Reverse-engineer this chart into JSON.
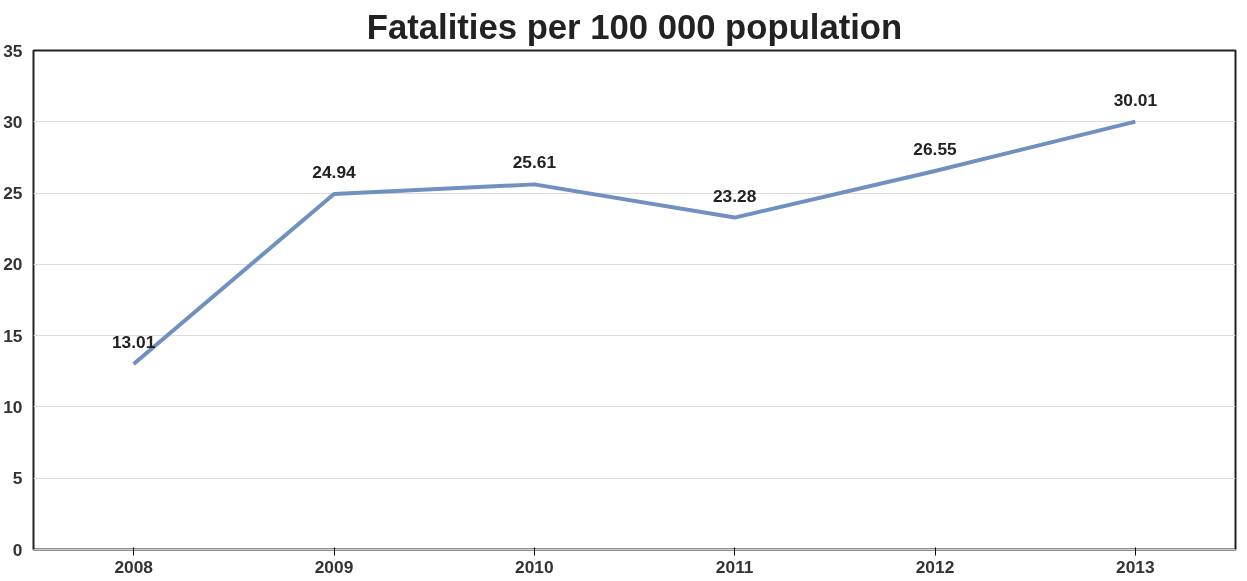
{
  "chart_data": {
    "type": "line",
    "title": "Fatalities per 100 000 population",
    "categories": [
      "2008",
      "2009",
      "2010",
      "2011",
      "2012",
      "2013"
    ],
    "series": [
      {
        "color": "#7090c0",
        "values": [
          13.01,
          24.94,
          25.61,
          23.28,
          26.55,
          30.01
        ]
      }
    ],
    "ylim": [
      0,
      35
    ],
    "yticks": [
      0,
      5,
      10,
      15,
      20,
      25,
      30,
      35
    ],
    "grid": "y",
    "data_labels": true,
    "marker": "none",
    "line_style": "solid"
  }
}
